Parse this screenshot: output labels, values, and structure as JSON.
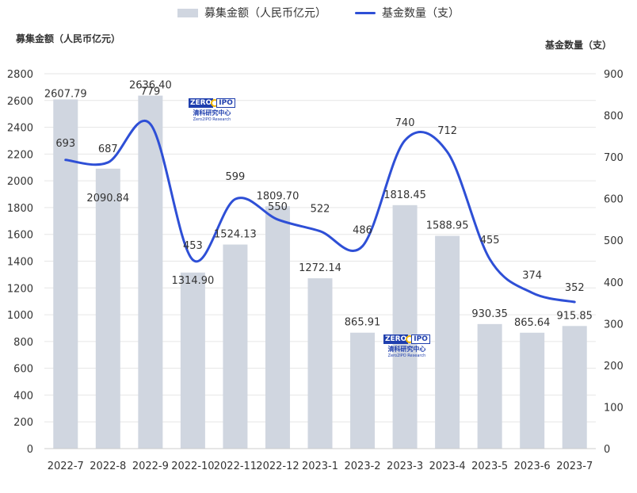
{
  "legend": {
    "bar_label": "募集金额（人民币亿元）",
    "line_label": "基金数量（支）"
  },
  "axes": {
    "left_title": "募集金额（人民币亿元）",
    "right_title": "基金数量（支）"
  },
  "watermark": {
    "logo_zero": "ZERO",
    "logo_ipo": "IPO",
    "cn": "清科研究中心",
    "en": "Zero2IPO Research"
  },
  "colors": {
    "bar": "#d0d6e0",
    "line": "#2e4fd6",
    "grid": "#e6e6e6",
    "text": "#333333"
  },
  "chart_data": {
    "type": "bar",
    "title": "",
    "categories": [
      "2022-7",
      "2022-8",
      "2022-9",
      "2022-10",
      "2022-11",
      "2022-12",
      "2023-1",
      "2023-2",
      "2023-3",
      "2023-4",
      "2023-5",
      "2023-6",
      "2023-7"
    ],
    "series": [
      {
        "name": "募集金额（人民币亿元）",
        "type": "bar",
        "axis": "left",
        "values": [
          2607.79,
          2090.84,
          2636.4,
          1314.9,
          1524.13,
          1809.7,
          1272.14,
          865.91,
          1818.45,
          1588.95,
          930.35,
          865.64,
          915.85
        ],
        "labels": [
          "2607.79",
          "2090.84",
          "2636.40",
          "1314.90",
          "1524.13",
          "1809.70",
          "1272.14",
          "865.91",
          "1818.45",
          "1588.95",
          "930.35",
          "865.64",
          "915.85"
        ]
      },
      {
        "name": "基金数量（支）",
        "type": "line",
        "axis": "right",
        "values": [
          693,
          687,
          779,
          453,
          599,
          550,
          522,
          486,
          740,
          712,
          455,
          374,
          352
        ],
        "labels": [
          "693",
          "687",
          "779",
          "453",
          "599",
          "550",
          "522",
          "486",
          "740",
          "712",
          "455",
          "374",
          "352"
        ]
      }
    ],
    "y_left": {
      "min": 0,
      "max": 2800,
      "step": 200,
      "ticks": [
        "0",
        "200",
        "400",
        "600",
        "800",
        "1000",
        "1200",
        "1400",
        "1600",
        "1800",
        "2000",
        "2200",
        "2400",
        "2600",
        "2800"
      ]
    },
    "y_right": {
      "min": 0,
      "max": 900,
      "step": 100,
      "ticks": [
        "0",
        "100",
        "200",
        "300",
        "400",
        "500",
        "600",
        "700",
        "800",
        "900"
      ]
    },
    "grid": true,
    "legend_position": "top-center"
  }
}
